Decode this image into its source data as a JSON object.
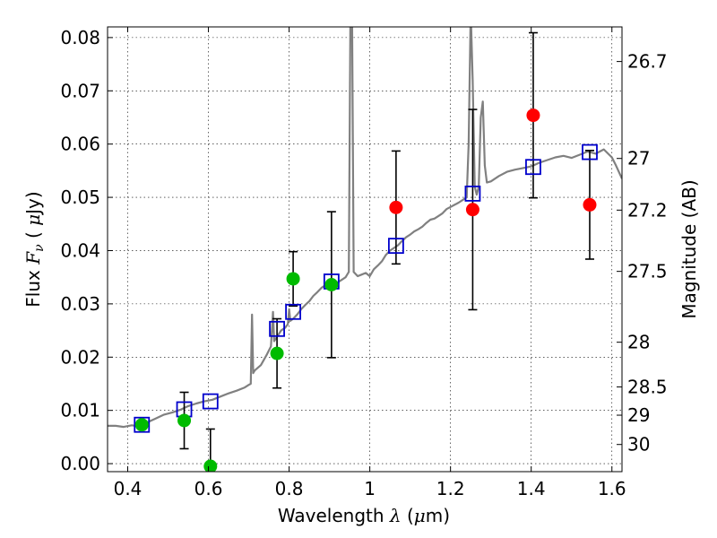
{
  "chart_data": {
    "type": "scatter",
    "xlabel_text": "Wavelength",
    "xlabel_symbol": "λ",
    "xlabel_unit_open": "(",
    "xlabel_unit_mu": "μ",
    "xlabel_unit_rest": "m)",
    "ylabel_text": "Flux",
    "ylabel_symbol": "F",
    "ylabel_sub": "ν",
    "ylabel_unit_open": "(",
    "ylabel_unit_mu": "μ",
    "ylabel_unit_rest": "Jy)",
    "y2label": "Magnitude (AB)",
    "xlim": [
      0.35,
      1.625
    ],
    "ylim": [
      -0.0015,
      0.082
    ],
    "x_ticks": [
      0.4,
      0.6,
      0.8,
      1.0,
      1.2,
      1.4,
      1.6
    ],
    "x_tick_labels": [
      "0.4",
      "0.6",
      "0.8",
      "1",
      "1.2",
      "1.4",
      "1.6"
    ],
    "y_ticks": [
      0.0,
      0.01,
      0.02,
      0.03,
      0.04,
      0.05,
      0.06,
      0.07,
      0.08
    ],
    "y_tick_labels": [
      "0.00",
      "0.01",
      "0.02",
      "0.03",
      "0.04",
      "0.05",
      "0.06",
      "0.07",
      "0.08"
    ],
    "y2_ticks": [
      {
        "label": "26.7",
        "flux": 0.0755
      },
      {
        "label": "27",
        "flux": 0.0573
      },
      {
        "label": "27.2",
        "flux": 0.0476
      },
      {
        "label": "27.5",
        "flux": 0.0361
      },
      {
        "label": "28",
        "flux": 0.0228
      },
      {
        "label": "28.5",
        "flux": 0.0144
      },
      {
        "label": "29",
        "flux": 0.0091
      },
      {
        "label": "30",
        "flux": 0.0036
      }
    ],
    "grid": true,
    "colors": {
      "model": "#808080",
      "model_photometry": "#0000cc",
      "optical": "#00bb00",
      "nir": "#ff0000",
      "errorbar": "#000000"
    },
    "model_photometry": [
      {
        "x": 0.435,
        "y": 0.0073
      },
      {
        "x": 0.54,
        "y": 0.0102
      },
      {
        "x": 0.605,
        "y": 0.0117
      },
      {
        "x": 0.77,
        "y": 0.0253
      },
      {
        "x": 0.81,
        "y": 0.0285
      },
      {
        "x": 0.905,
        "y": 0.0342
      },
      {
        "x": 1.065,
        "y": 0.0409
      },
      {
        "x": 1.255,
        "y": 0.0507
      },
      {
        "x": 1.405,
        "y": 0.0557
      },
      {
        "x": 1.545,
        "y": 0.0585
      }
    ],
    "observed_optical": [
      {
        "x": 0.435,
        "y": 0.0073,
        "err": 0.0
      },
      {
        "x": 0.54,
        "y": 0.0081,
        "err": 0.0053
      },
      {
        "x": 0.605,
        "y": -0.0005,
        "err": 0.007
      },
      {
        "x": 0.77,
        "y": 0.0207,
        "err": 0.0065
      },
      {
        "x": 0.81,
        "y": 0.0347,
        "err": 0.0051
      },
      {
        "x": 0.905,
        "y": 0.0336,
        "err": 0.0137
      }
    ],
    "observed_nir": [
      {
        "x": 1.065,
        "y": 0.0481,
        "err": 0.0106
      },
      {
        "x": 1.255,
        "y": 0.0477,
        "err": 0.0188
      },
      {
        "x": 1.405,
        "y": 0.0654,
        "err": 0.0155
      },
      {
        "x": 1.545,
        "y": 0.0486,
        "err": 0.0102
      }
    ],
    "model_spectrum": [
      [
        0.35,
        0.0071
      ],
      [
        0.37,
        0.0071
      ],
      [
        0.39,
        0.0069
      ],
      [
        0.41,
        0.0072
      ],
      [
        0.43,
        0.007
      ],
      [
        0.45,
        0.0078
      ],
      [
        0.47,
        0.0085
      ],
      [
        0.49,
        0.0092
      ],
      [
        0.51,
        0.0096
      ],
      [
        0.53,
        0.0101
      ],
      [
        0.55,
        0.0108
      ],
      [
        0.57,
        0.0113
      ],
      [
        0.59,
        0.0117
      ],
      [
        0.61,
        0.012
      ],
      [
        0.63,
        0.0126
      ],
      [
        0.65,
        0.0132
      ],
      [
        0.67,
        0.0137
      ],
      [
        0.69,
        0.0143
      ],
      [
        0.7,
        0.0148
      ],
      [
        0.705,
        0.015
      ],
      [
        0.708,
        0.028
      ],
      [
        0.711,
        0.017
      ],
      [
        0.715,
        0.0175
      ],
      [
        0.73,
        0.0185
      ],
      [
        0.745,
        0.0205
      ],
      [
        0.755,
        0.022
      ],
      [
        0.76,
        0.0285
      ],
      [
        0.763,
        0.023
      ],
      [
        0.77,
        0.0238
      ],
      [
        0.78,
        0.025
      ],
      [
        0.79,
        0.0255
      ],
      [
        0.797,
        0.0262
      ],
      [
        0.8,
        0.029
      ],
      [
        0.803,
        0.0268
      ],
      [
        0.81,
        0.0272
      ],
      [
        0.82,
        0.028
      ],
      [
        0.83,
        0.029
      ],
      [
        0.84,
        0.0298
      ],
      [
        0.85,
        0.0305
      ],
      [
        0.86,
        0.0315
      ],
      [
        0.87,
        0.0322
      ],
      [
        0.88,
        0.033
      ],
      [
        0.89,
        0.0335
      ],
      [
        0.9,
        0.0338
      ],
      [
        0.91,
        0.0342
      ],
      [
        0.92,
        0.034
      ],
      [
        0.93,
        0.0345
      ],
      [
        0.94,
        0.035
      ],
      [
        0.948,
        0.036
      ],
      [
        0.952,
        0.085
      ],
      [
        0.956,
        0.085
      ],
      [
        0.96,
        0.036
      ],
      [
        0.97,
        0.0352
      ],
      [
        0.98,
        0.0355
      ],
      [
        0.99,
        0.0358
      ],
      [
        1.0,
        0.0352
      ],
      [
        1.01,
        0.0365
      ],
      [
        1.02,
        0.0372
      ],
      [
        1.03,
        0.038
      ],
      [
        1.04,
        0.0392
      ],
      [
        1.05,
        0.04
      ],
      [
        1.06,
        0.0405
      ],
      [
        1.07,
        0.041
      ],
      [
        1.08,
        0.0418
      ],
      [
        1.09,
        0.0425
      ],
      [
        1.1,
        0.043
      ],
      [
        1.11,
        0.0436
      ],
      [
        1.12,
        0.044
      ],
      [
        1.13,
        0.0445
      ],
      [
        1.14,
        0.0452
      ],
      [
        1.15,
        0.0458
      ],
      [
        1.16,
        0.046
      ],
      [
        1.17,
        0.0465
      ],
      [
        1.18,
        0.047
      ],
      [
        1.19,
        0.0478
      ],
      [
        1.2,
        0.0482
      ],
      [
        1.21,
        0.0486
      ],
      [
        1.22,
        0.049
      ],
      [
        1.23,
        0.0495
      ],
      [
        1.24,
        0.05
      ],
      [
        1.245,
        0.06
      ],
      [
        1.25,
        0.085
      ],
      [
        1.255,
        0.072
      ],
      [
        1.26,
        0.052
      ],
      [
        1.265,
        0.0505
      ],
      [
        1.27,
        0.052
      ],
      [
        1.275,
        0.065
      ],
      [
        1.28,
        0.068
      ],
      [
        1.285,
        0.056
      ],
      [
        1.29,
        0.0528
      ],
      [
        1.3,
        0.053
      ],
      [
        1.32,
        0.054
      ],
      [
        1.34,
        0.0548
      ],
      [
        1.36,
        0.0552
      ],
      [
        1.38,
        0.0555
      ],
      [
        1.4,
        0.0558
      ],
      [
        1.42,
        0.0565
      ],
      [
        1.44,
        0.057
      ],
      [
        1.46,
        0.0575
      ],
      [
        1.48,
        0.0578
      ],
      [
        1.5,
        0.0574
      ],
      [
        1.52,
        0.058
      ],
      [
        1.54,
        0.0586
      ],
      [
        1.56,
        0.0582
      ],
      [
        1.58,
        0.059
      ],
      [
        1.6,
        0.0575
      ],
      [
        1.61,
        0.056
      ],
      [
        1.625,
        0.0535
      ]
    ]
  }
}
